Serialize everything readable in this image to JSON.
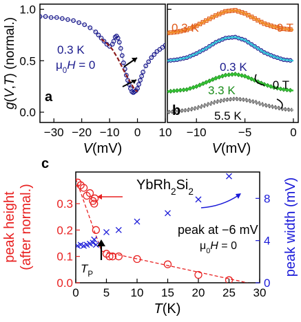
{
  "chart_data": [
    {
      "panel": "a",
      "type": "line",
      "ylabel": "g(V,T) (normal.)",
      "xlabel": "V (mV)",
      "xlim": [
        -35,
        10
      ],
      "ylim": [
        -0.1,
        1.05
      ],
      "xticks": [
        -30,
        -20,
        -10,
        0,
        10
      ],
      "yticks": [
        0.0,
        0.5,
        1.0
      ],
      "annotations": [
        "0.3 K",
        "μ0H = 0"
      ],
      "series": [
        {
          "style": "open-circles",
          "color": "#1a1a8c",
          "x": [
            -35,
            -33,
            -31,
            -29,
            -27,
            -25,
            -23,
            -21,
            -19,
            -17,
            -15,
            -14,
            -13,
            -12,
            -11,
            -10,
            -9,
            -8.5,
            -8,
            -7.5,
            -7,
            -6.5,
            -6,
            -5.5,
            -5,
            -4.5,
            -4,
            -3.5,
            -3,
            -2.5,
            -2,
            -1.5,
            -1,
            -0.5,
            0,
            0.5,
            1,
            1.5,
            2,
            3,
            4,
            5,
            6,
            7,
            8,
            9,
            10
          ],
          "y": [
            0.93,
            0.93,
            0.92,
            0.92,
            0.91,
            0.9,
            0.89,
            0.87,
            0.85,
            0.82,
            0.78,
            0.75,
            0.72,
            0.69,
            0.66,
            0.64,
            0.66,
            0.69,
            0.73,
            0.74,
            0.72,
            0.68,
            0.62,
            0.55,
            0.48,
            0.42,
            0.36,
            0.31,
            0.27,
            0.23,
            0.2,
            0.19,
            0.2,
            0.21,
            0.23,
            0.27,
            0.31,
            0.35,
            0.39,
            0.45,
            0.49,
            0.53,
            0.56,
            0.59,
            0.61,
            0.63,
            0.65
          ]
        },
        {
          "style": "dashed",
          "color": "#8b1a1a",
          "x": [
            -13,
            -11,
            -9,
            -7,
            -5,
            -3,
            -1,
            0
          ],
          "y": [
            0.71,
            0.67,
            0.61,
            0.52,
            0.41,
            0.31,
            0.22,
            0.2
          ]
        }
      ]
    },
    {
      "panel": "b",
      "type": "line",
      "xlabel": "V (mV)",
      "xlim": [
        -13,
        0.5
      ],
      "xticks": [
        -10,
        -5,
        0
      ],
      "curve_x": [
        -13,
        -12,
        -11,
        -10,
        -9,
        -8,
        -7,
        -6,
        -5,
        -4,
        -3,
        -2,
        -1,
        0
      ],
      "labels": {
        "top_temp": "0.3 K",
        "top_field": "9 T",
        "mid_temp": "0.3 K",
        "mid_field": "0 T",
        "green_temp": "3.3 K",
        "grey_temp": "5.5 K"
      },
      "series": [
        {
          "color": "#e05a1a",
          "fit_color": "#f08c2a",
          "marker": "open-squares",
          "curve_y": [
            0.77,
            0.78,
            0.8,
            0.84,
            0.89,
            0.94,
            0.98,
            0.99,
            0.96,
            0.91,
            0.86,
            0.83,
            0.81,
            0.8
          ]
        },
        {
          "color": "#1a1a8c",
          "fit_color": "#30c0d8",
          "marker": "open-circles",
          "curve_y": [
            0.5,
            0.51,
            0.53,
            0.57,
            0.62,
            0.68,
            0.72,
            0.73,
            0.7,
            0.64,
            0.58,
            0.54,
            0.51,
            0.5
          ]
        },
        {
          "color": "#1a8c1a",
          "fit_color": "#30c030",
          "marker": "open-diamonds",
          "curve_y": [
            0.2,
            0.21,
            0.22,
            0.25,
            0.29,
            0.33,
            0.36,
            0.37,
            0.35,
            0.31,
            0.27,
            0.24,
            0.22,
            0.21
          ]
        },
        {
          "color": "#555555",
          "fit_color": "#999999",
          "marker": "crosses",
          "curve_y": [
            0.0,
            0.01,
            0.02,
            0.04,
            0.07,
            0.1,
            0.12,
            0.13,
            0.12,
            0.1,
            0.07,
            0.05,
            0.03,
            0.02
          ]
        }
      ]
    },
    {
      "panel": "c",
      "type": "scatter",
      "title": "YbRh2Si2",
      "xlabel": "T (K)",
      "ylabel": "peak height (after normal.)",
      "y2label": "peak width (mV)",
      "xlim": [
        0,
        30
      ],
      "ylim": [
        0,
        0.42
      ],
      "y2lim": [
        0,
        10.5
      ],
      "xticks": [
        0,
        5,
        10,
        15,
        20,
        25,
        30
      ],
      "yticks": [
        0.0,
        0.1,
        0.2,
        0.3
      ],
      "y2ticks": [
        0,
        4,
        8
      ],
      "annotations": [
        "peak at −6 mV",
        "μ0H = 0",
        "TP"
      ],
      "series": [
        {
          "name": "peak height",
          "color": "#e82020",
          "marker": "open-circles",
          "x": [
            0.3,
            0.8,
            1.3,
            1.8,
            2.3,
            2.8,
            3.0,
            3.1,
            3.3,
            5.0,
            5.5,
            6.0,
            7.0,
            10.0,
            15.0,
            20.0,
            25.0
          ],
          "y": [
            0.38,
            0.37,
            0.36,
            0.33,
            0.34,
            0.31,
            0.3,
            0.32,
            0.2,
            0.11,
            0.1,
            0.1,
            0.1,
            0.09,
            0.07,
            0.03,
            0.01
          ]
        },
        {
          "name": "peak width",
          "color": "#1a1ad8",
          "marker": "crosses",
          "x": [
            0.3,
            0.8,
            1.3,
            1.8,
            2.3,
            2.8,
            3.0,
            3.3,
            5.0,
            7.0,
            10.0,
            15.0,
            20.0,
            25.0
          ],
          "y": [
            3.5,
            3.6,
            3.5,
            3.6,
            3.7,
            3.8,
            4.1,
            3.6,
            4.8,
            5.0,
            5.8,
            6.6,
            7.9,
            10.1
          ]
        }
      ],
      "fit_lines": [
        {
          "x": [
            0,
            4.2
          ],
          "y": [
            0.395,
            0.12
          ]
        },
        {
          "x": [
            4.2,
            28
          ],
          "y": [
            0.12,
            0.0
          ]
        }
      ]
    }
  ]
}
